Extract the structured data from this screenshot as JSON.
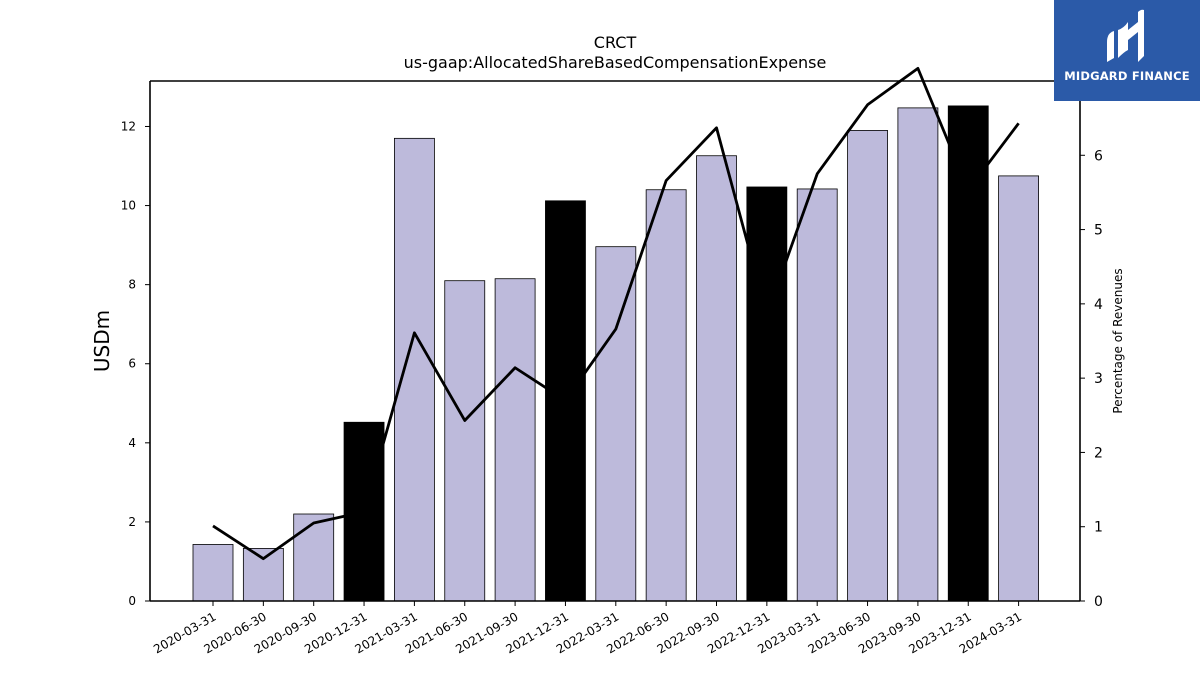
{
  "chart_data": {
    "type": "bar",
    "title": "CRCT",
    "subtitle": "us-gaap:AllocatedShareBasedCompensationExpense",
    "ylabel": "USDm",
    "y2label": "Percentage of Revenues",
    "categories": [
      "2020-03-31",
      "2020-06-30",
      "2020-09-30",
      "2020-12-31",
      "2021-03-31",
      "2021-06-30",
      "2021-09-30",
      "2021-12-31",
      "2022-03-31",
      "2022-06-30",
      "2022-09-30",
      "2022-12-31",
      "2023-03-31",
      "2023-06-30",
      "2023-09-30",
      "2023-12-31",
      "2024-03-31"
    ],
    "series": [
      {
        "type": "bar",
        "axis": "left",
        "values": [
          1.43,
          1.33,
          2.2,
          4.52,
          11.7,
          8.1,
          8.15,
          10.12,
          8.96,
          10.4,
          11.26,
          10.47,
          10.42,
          11.9,
          12.47,
          12.52,
          10.75
        ],
        "highlight": [
          false,
          false,
          false,
          true,
          false,
          false,
          false,
          true,
          false,
          false,
          false,
          true,
          false,
          false,
          false,
          true,
          false
        ],
        "color": "#bdbadb",
        "highlight_color": "#000000"
      },
      {
        "type": "line",
        "axis": "right",
        "values": [
          1.01,
          0.57,
          1.05,
          1.2,
          3.61,
          2.43,
          3.14,
          2.7,
          3.66,
          5.66,
          6.37,
          3.85,
          5.75,
          6.68,
          7.17,
          5.53,
          6.43
        ],
        "color": "#000000"
      }
    ],
    "yticks": [
      "0",
      "2",
      "4",
      "6",
      "8",
      "10",
      "12"
    ],
    "y2ticks": [
      "0",
      "1",
      "2",
      "3",
      "4",
      "5",
      "6",
      "7"
    ],
    "ylim": [
      0,
      13.15
    ],
    "y2lim": [
      0,
      7.0
    ],
    "grid": false
  },
  "logo": {
    "text": "MIDGARD FINANCE",
    "bg_color": "#2b5aa8"
  }
}
